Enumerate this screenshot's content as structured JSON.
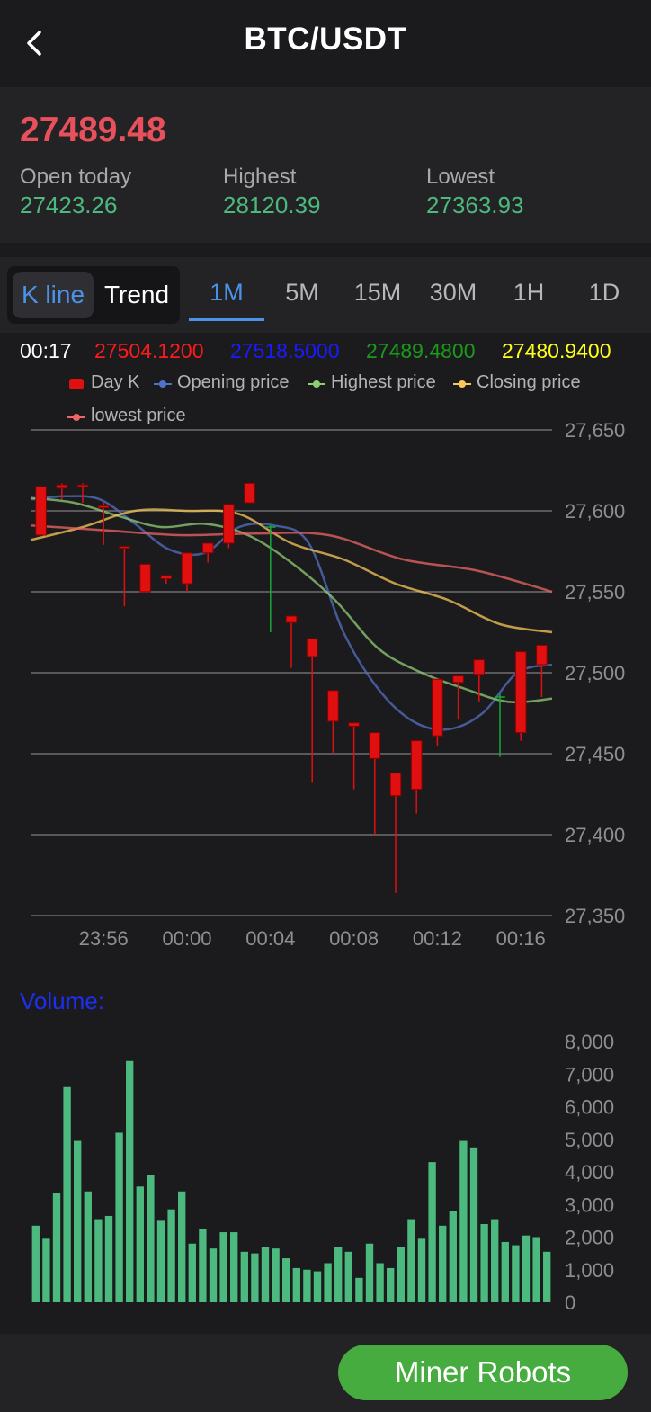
{
  "header": {
    "title": "BTC/USDT"
  },
  "ticker": {
    "last_price": "27489.48",
    "stats": [
      {
        "label": "Open today",
        "value": "27423.26"
      },
      {
        "label": "Highest",
        "value": "28120.39"
      },
      {
        "label": "Lowest",
        "value": "27363.93"
      }
    ]
  },
  "tabs": {
    "modes": [
      "K line",
      "Trend"
    ],
    "timeframes": [
      "1M",
      "5M",
      "15M",
      "30M",
      "1H",
      "1D"
    ],
    "active_timeframe": "1M"
  },
  "readout": {
    "time": "00:17",
    "values": [
      "27504.1200",
      "27518.5000",
      "27489.4800",
      "27480.9400"
    ],
    "colors": [
      "#ff1a1a",
      "#1a1aff",
      "#1a9a1a",
      "#ffff1a"
    ]
  },
  "legend": [
    {
      "name": "Day K",
      "color": "#e01010"
    },
    {
      "name": "Opening price",
      "color": "#5470c6"
    },
    {
      "name": "Highest price",
      "color": "#91cc75"
    },
    {
      "name": "Closing price",
      "color": "#fac858"
    },
    {
      "name": "lowest price",
      "color": "#ee6666"
    }
  ],
  "colors": {
    "up": "#e01010",
    "down": "#19a83a",
    "volume": "#4cba7e",
    "accent": "#4a93e8"
  },
  "chart_data": [
    {
      "type": "candlestick",
      "ylim": [
        27350,
        27650
      ],
      "yticks": [
        "27,650",
        "27,600",
        "27,550",
        "27,500",
        "27,450",
        "27,400",
        "27,350"
      ],
      "yticks_values": [
        27650,
        27600,
        27550,
        27500,
        27450,
        27400,
        27350
      ],
      "xticks": [
        "23:56",
        "00:00",
        "00:04",
        "00:08",
        "00:12",
        "00:16"
      ],
      "xticks_index": [
        3,
        7,
        11,
        15,
        19,
        23
      ],
      "candles": [
        {
          "o": 27615,
          "c": 27585,
          "h": 27615,
          "l": 27585
        },
        {
          "o": 27616,
          "c": 27614,
          "h": 27617,
          "l": 27607
        },
        {
          "o": 27616,
          "c": 27615,
          "h": 27617,
          "l": 27605
        },
        {
          "o": 27603,
          "c": 27602,
          "h": 27605,
          "l": 27579
        },
        {
          "o": 27578,
          "c": 27577,
          "h": 27578,
          "l": 27541
        },
        {
          "o": 27567,
          "c": 27550,
          "h": 27567,
          "l": 27550
        },
        {
          "o": 27560,
          "c": 27558,
          "h": 27560,
          "l": 27555
        },
        {
          "o": 27574,
          "c": 27555,
          "h": 27574,
          "l": 27550
        },
        {
          "o": 27580,
          "c": 27574,
          "h": 27580,
          "l": 27568
        },
        {
          "o": 27604,
          "c": 27580,
          "h": 27604,
          "l": 27577
        },
        {
          "o": 27617,
          "c": 27605,
          "h": 27617,
          "l": 27605
        },
        {
          "o": 27590,
          "c": 27590,
          "h": 27591,
          "l": 27525
        },
        {
          "o": 27535,
          "c": 27531,
          "h": 27535,
          "l": 27503
        },
        {
          "o": 27521,
          "c": 27510,
          "h": 27521,
          "l": 27432
        },
        {
          "o": 27489,
          "c": 27470,
          "h": 27489,
          "l": 27450
        },
        {
          "o": 27469,
          "c": 27467,
          "h": 27469,
          "l": 27428
        },
        {
          "o": 27463,
          "c": 27447,
          "h": 27463,
          "l": 27400
        },
        {
          "o": 27438,
          "c": 27424,
          "h": 27438,
          "l": 27364
        },
        {
          "o": 27458,
          "c": 27428,
          "h": 27458,
          "l": 27413
        },
        {
          "o": 27496,
          "c": 27461,
          "h": 27496,
          "l": 27455
        },
        {
          "o": 27498,
          "c": 27494,
          "h": 27498,
          "l": 27471
        },
        {
          "o": 27508,
          "c": 27499,
          "h": 27508,
          "l": 27482
        },
        {
          "o": 27485,
          "c": 27485,
          "h": 27487,
          "l": 27448
        },
        {
          "o": 27513,
          "c": 27463,
          "h": 27513,
          "l": 27458
        },
        {
          "o": 27517,
          "c": 27505,
          "h": 27517,
          "l": 27485
        }
      ],
      "lines": [
        {
          "name": "Opening price",
          "values": [
            27607,
            27609,
            27607,
            27592,
            27576,
            27574,
            27590,
            27591,
            27580,
            27525,
            27490,
            27470,
            27465,
            27475,
            27500,
            27505
          ]
        },
        {
          "name": "Highest price",
          "values": [
            27608,
            27605,
            27597,
            27590,
            27592,
            27585,
            27568,
            27545,
            27515,
            27500,
            27490,
            27482,
            27484
          ]
        },
        {
          "name": "Closing price",
          "values": [
            27582,
            27590,
            27600,
            27600,
            27598,
            27580,
            27570,
            27555,
            27545,
            27530,
            27525
          ]
        },
        {
          "name": "lowest price",
          "values": [
            27591,
            27588,
            27585,
            27586,
            27585,
            27570,
            27563,
            27550
          ]
        }
      ]
    },
    {
      "type": "bar",
      "title": "Volume:",
      "ylim": [
        0,
        8000
      ],
      "yticks": [
        "8,000",
        "7,000",
        "6,000",
        "5,000",
        "4,000",
        "3,000",
        "2,000",
        "1,000",
        "0"
      ],
      "yticks_values": [
        8000,
        7000,
        6000,
        5000,
        4000,
        3000,
        2000,
        1000,
        0
      ],
      "values": [
        2350,
        1950,
        3350,
        6600,
        4950,
        3400,
        2550,
        2650,
        5200,
        7400,
        3550,
        3900,
        2500,
        2850,
        3400,
        1800,
        2250,
        1650,
        2150,
        2150,
        1550,
        1500,
        1700,
        1650,
        1350,
        1050,
        1000,
        950,
        1200,
        1700,
        1550,
        750,
        1800,
        1200,
        1050,
        1700,
        2550,
        1950,
        4300,
        2350,
        2800,
        4950,
        4750,
        2400,
        2550,
        1850,
        1750,
        2050,
        2000,
        1550
      ]
    }
  ],
  "footer": {
    "button_label": "Miner Robots"
  }
}
